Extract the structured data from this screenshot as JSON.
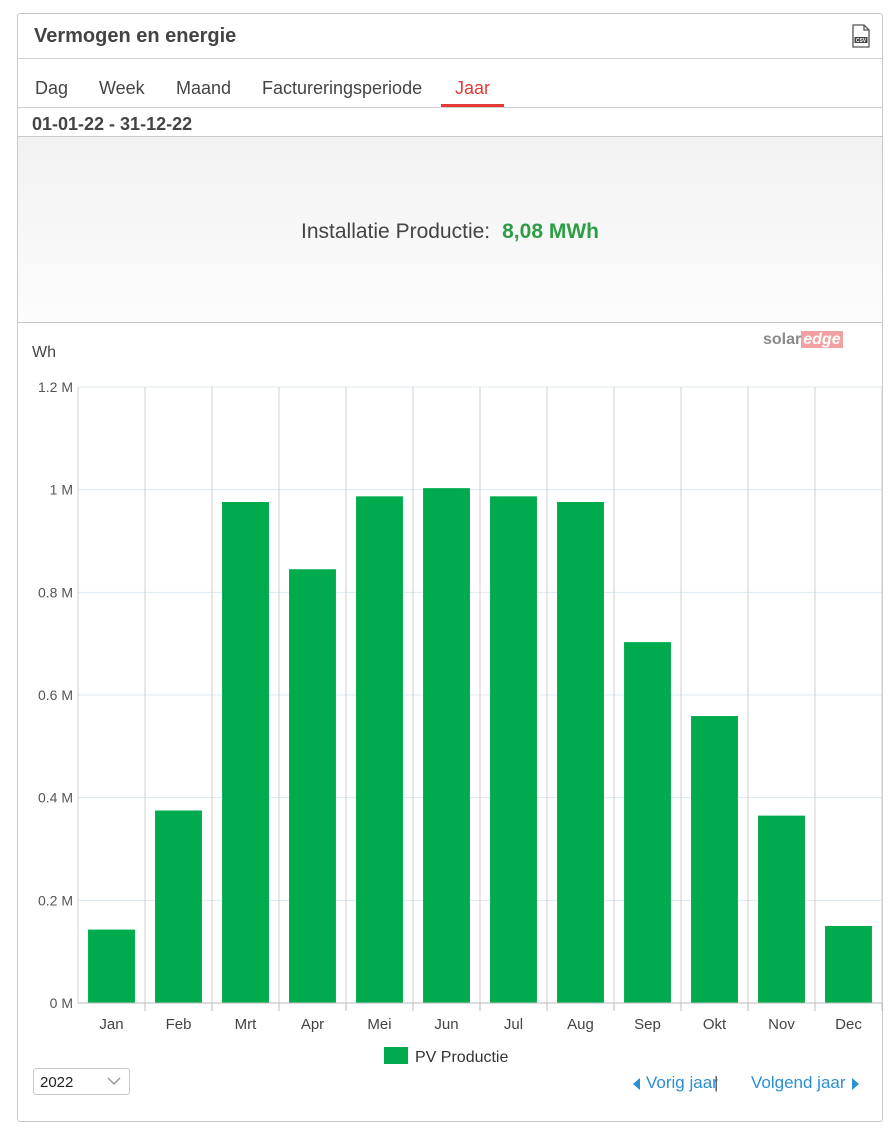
{
  "header": {
    "title": "Vermogen en energie",
    "csv_icon": "csv-file-icon"
  },
  "tabs": [
    {
      "label": "Dag"
    },
    {
      "label": "Week"
    },
    {
      "label": "Maand"
    },
    {
      "label": "Factureringsperiode"
    },
    {
      "label": "Jaar",
      "active": true
    }
  ],
  "date_range": "01-01-22 - 31-12-22",
  "summary": {
    "label": "Installatie Productie:",
    "value": "8,08 MWh"
  },
  "brand": {
    "part1": "solar",
    "part2": "edge"
  },
  "colors": {
    "accent": "#e53935",
    "bar": "#00ab4e",
    "value_text": "#2e9e46",
    "link": "#2a8fd4"
  },
  "chart_data": {
    "type": "bar",
    "unit_label": "Wh",
    "categories": [
      "Jan",
      "Feb",
      "Mrt",
      "Apr",
      "Mei",
      "Jun",
      "Jul",
      "Aug",
      "Sep",
      "Okt",
      "Nov",
      "Dec"
    ],
    "series": [
      {
        "name": "PV Productie",
        "color": "#00ab4e",
        "values": [
          143000,
          375000,
          976000,
          845000,
          987000,
          1003000,
          987000,
          976000,
          703000,
          559000,
          365000,
          150000
        ]
      }
    ],
    "yticks": [
      0,
      200000,
      400000,
      600000,
      800000,
      1000000,
      1200000
    ],
    "ytick_labels": [
      "0 M",
      "0.2 M",
      "0.4 M",
      "0.6 M",
      "0.8 M",
      "1 M",
      "1.2 M"
    ],
    "ylim": [
      0,
      1200000
    ],
    "grid": true,
    "legend_position": "bottom-center"
  },
  "footer": {
    "year_value": "2022",
    "prev_label": "Vorig jaar",
    "separator": "|",
    "next_label": "Volgend jaar"
  }
}
